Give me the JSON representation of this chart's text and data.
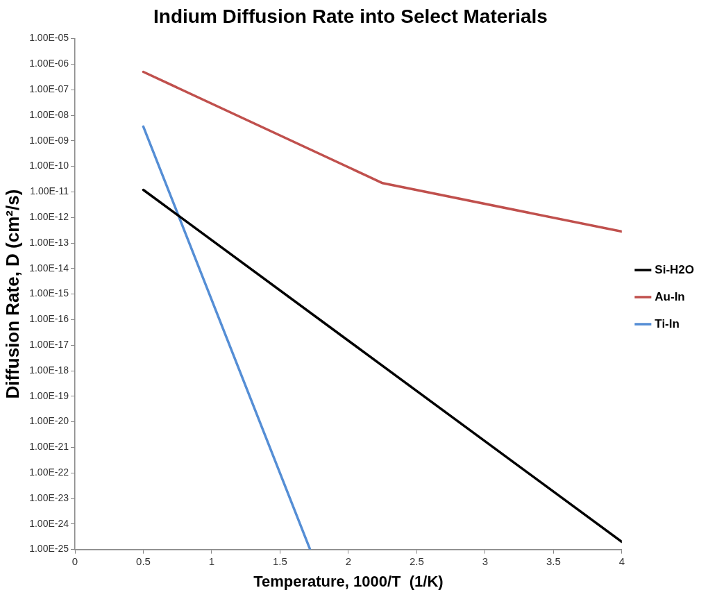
{
  "chart_data": {
    "type": "line",
    "title": "Indium Diffusion Rate into Select Materials",
    "xlabel": "Temperature, 1000/T  (1/K)",
    "ylabel": "Diffusion Rate, D (cm²/s)",
    "log": "y",
    "grid": false,
    "legend": "right",
    "marker": "none",
    "line_style": "solid",
    "xlim": [
      0,
      4
    ],
    "xticks": [
      0,
      0.5,
      1,
      1.5,
      2,
      2.5,
      3,
      3.5,
      4
    ],
    "ylim": [
      1e-25,
      1e-05
    ],
    "yticks": [
      {
        "value": 1e-25,
        "label": "1.00E-25"
      },
      {
        "value": 1e-24,
        "label": "1.00E-24"
      },
      {
        "value": 1e-23,
        "label": "1.00E-23"
      },
      {
        "value": 1e-22,
        "label": "1.00E-22"
      },
      {
        "value": 1e-21,
        "label": "1.00E-21"
      },
      {
        "value": 1e-20,
        "label": "1.00E-20"
      },
      {
        "value": 1e-19,
        "label": "1.00E-19"
      },
      {
        "value": 1e-18,
        "label": "1.00E-18"
      },
      {
        "value": 1e-17,
        "label": "1.00E-17"
      },
      {
        "value": 1e-16,
        "label": "1.00E-16"
      },
      {
        "value": 1e-15,
        "label": "1.00E-15"
      },
      {
        "value": 1e-14,
        "label": "1.00E-14"
      },
      {
        "value": 1e-13,
        "label": "1.00E-13"
      },
      {
        "value": 1e-12,
        "label": "1.00E-12"
      },
      {
        "value": 1e-11,
        "label": "1.00E-11"
      },
      {
        "value": 1e-10,
        "label": "1.00E-10"
      },
      {
        "value": 1e-09,
        "label": "1.00E-09"
      },
      {
        "value": 1e-08,
        "label": "1.00E-08"
      },
      {
        "value": 1e-07,
        "label": "1.00E-07"
      },
      {
        "value": 1e-06,
        "label": "1.00E-06"
      },
      {
        "value": 1e-05,
        "label": "1.00E-05"
      }
    ],
    "series": [
      {
        "name": "Si-H2O",
        "color": "#000000",
        "x": [
          0.5,
          4
        ],
        "values": [
          1.2e-11,
          2e-25
        ]
      },
      {
        "name": "Au-In",
        "color": "#c0504d",
        "x": [
          0.5,
          2.25,
          4
        ],
        "values": [
          5e-07,
          2.2e-11,
          2.8e-13
        ]
      },
      {
        "name": "Ti-In",
        "color": "#558ed5",
        "x": [
          0.5,
          1.72
        ],
        "values": [
          3.6e-09,
          1e-25
        ]
      }
    ]
  }
}
